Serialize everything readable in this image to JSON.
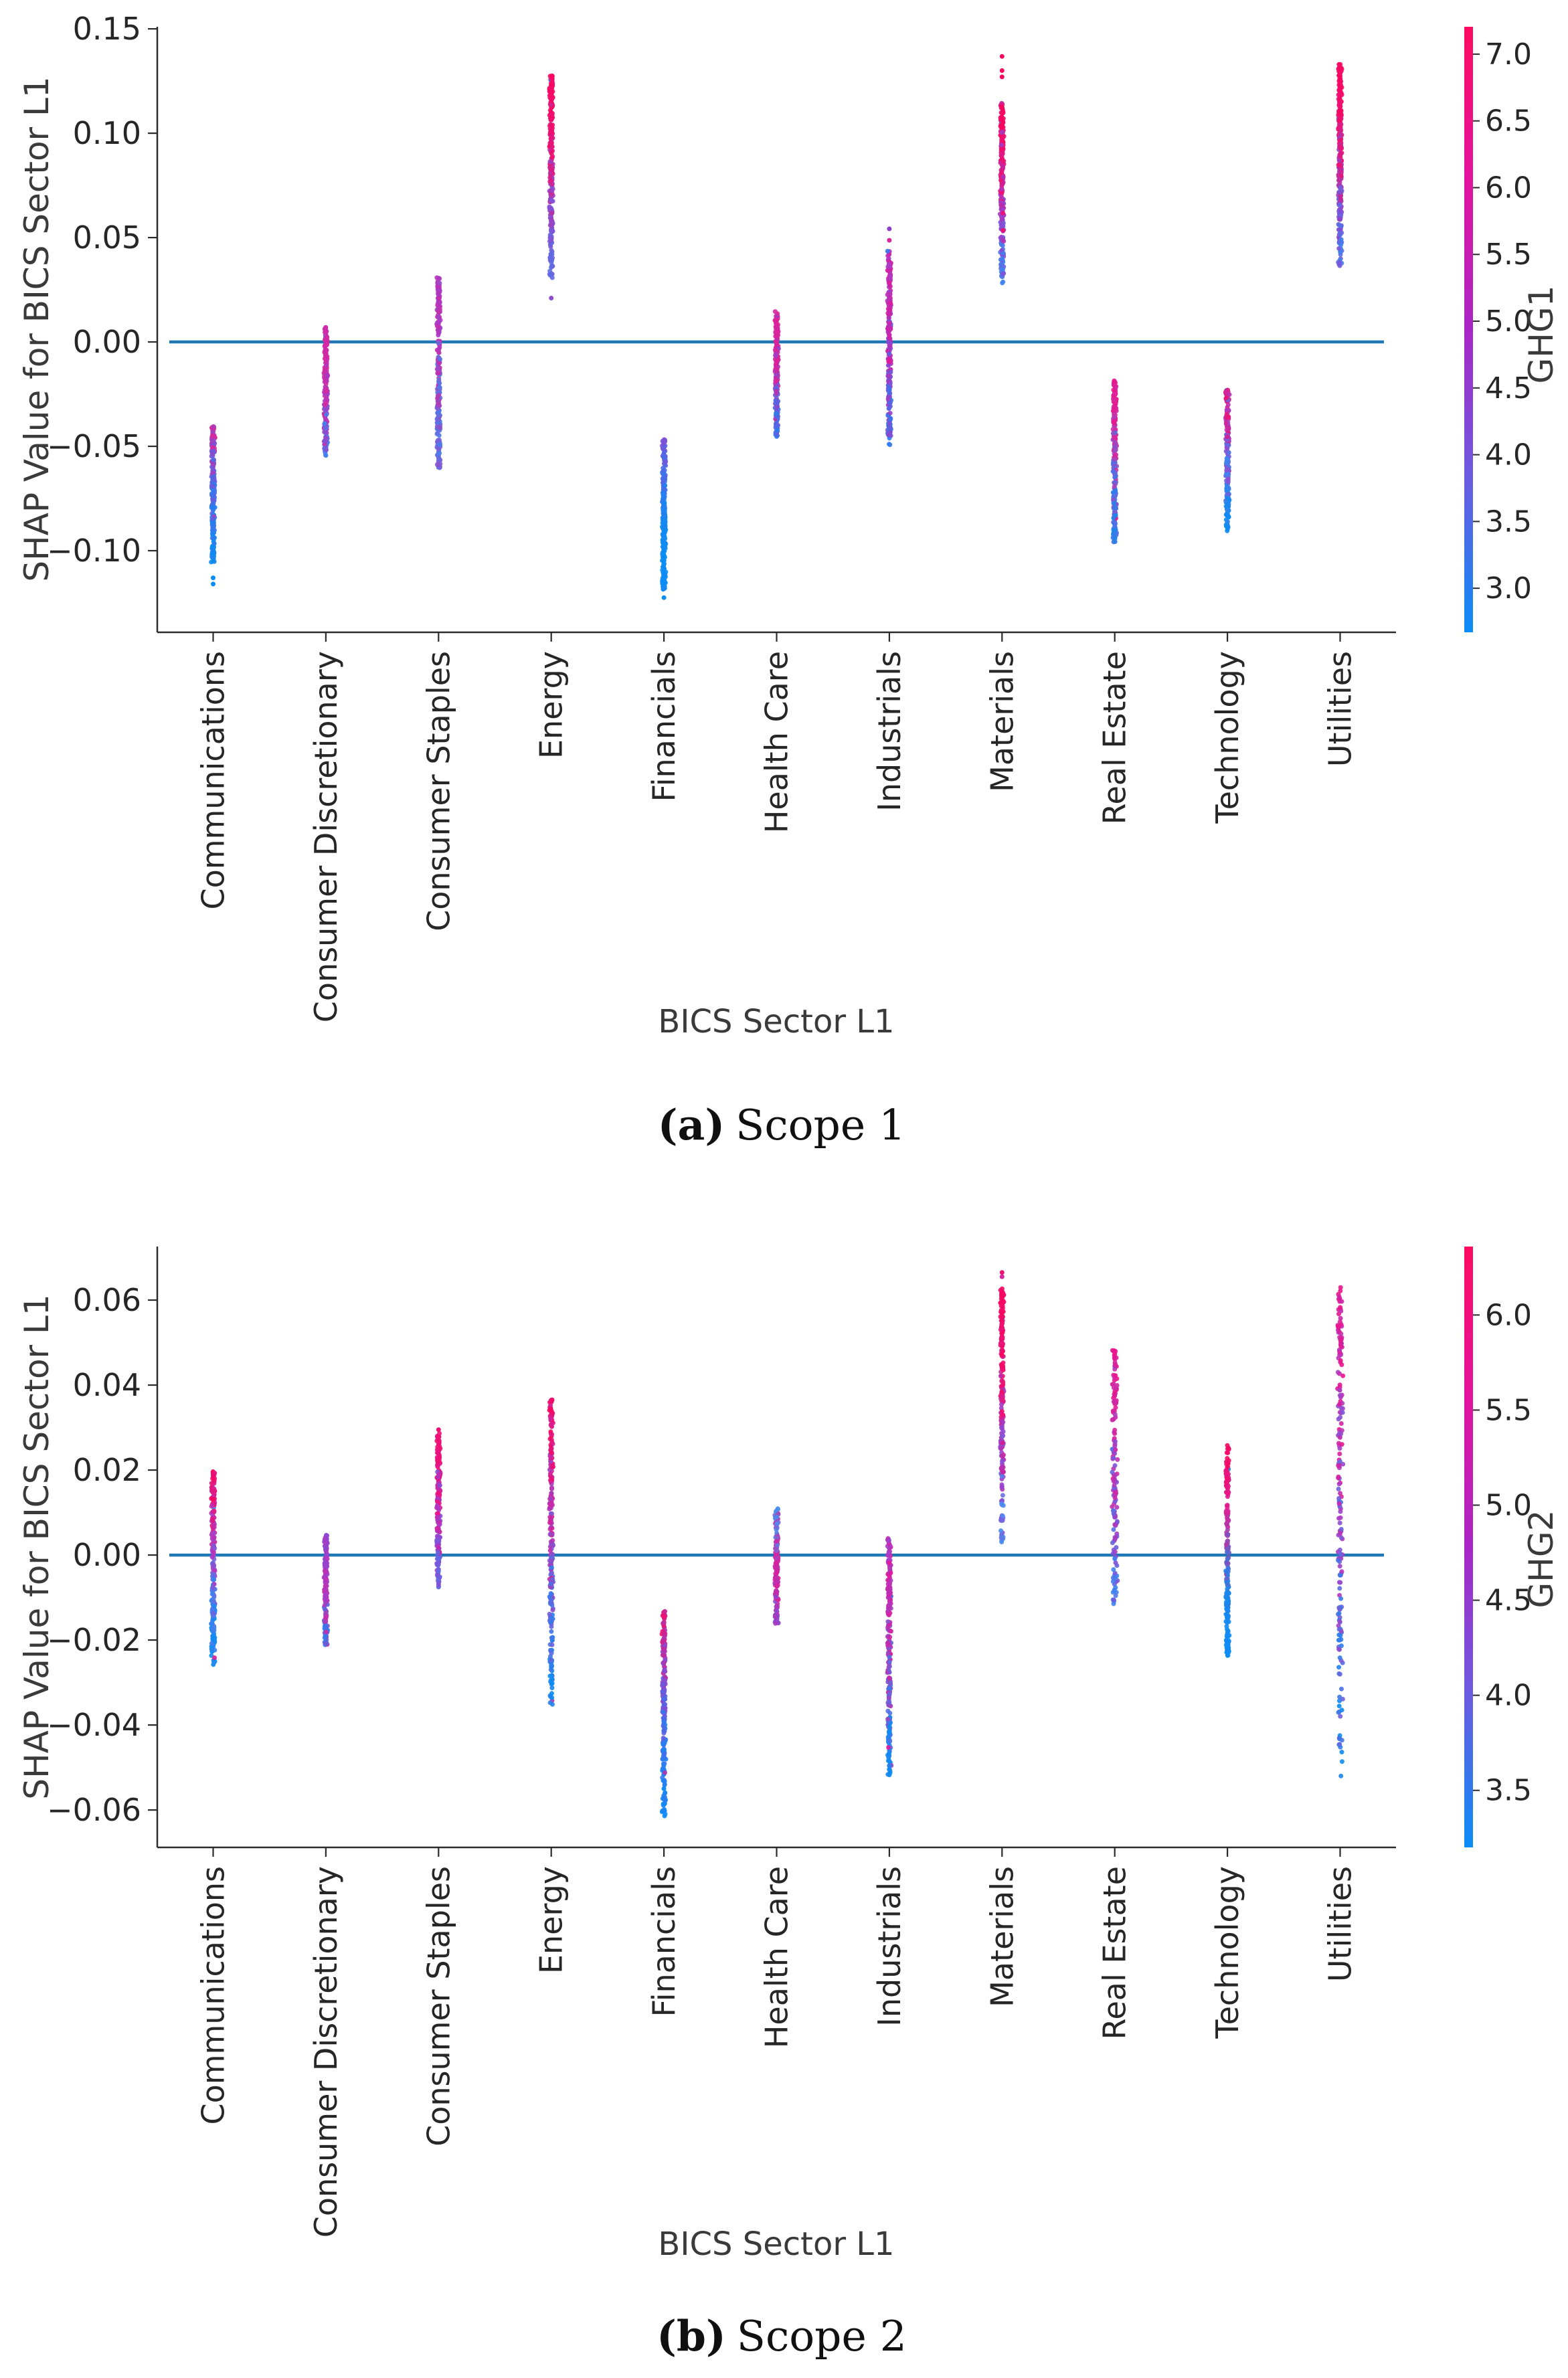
{
  "figure": {
    "subfigures": [
      {
        "caption_tag": "(a)",
        "caption_text": "Scope 1"
      },
      {
        "caption_tag": "(b)",
        "caption_text": "Scope 2"
      }
    ]
  },
  "chart_data": [
    {
      "type": "scatter",
      "variant": "shap-strip-plot",
      "xlabel": "BICS Sector L1",
      "ylabel": "SHAP Value for BICS Sector L1",
      "caption": "(a) Scope 1",
      "ylim": [
        -0.1391,
        0.151
      ],
      "yticks": [
        0.15,
        0.1,
        0.05,
        0.0,
        -0.05,
        -0.1
      ],
      "zero_line": 0.0,
      "zero_line_color": "#1f77b4",
      "grid": false,
      "legend_position": "right-colorbar",
      "categories": [
        "Communications",
        "Consumer Discretionary",
        "Consumer Staples",
        "Energy",
        "Financials",
        "Health Care",
        "Industrials",
        "Materials",
        "Real Estate",
        "Technology",
        "Utilities"
      ],
      "colorbar": {
        "label": "GHG1",
        "vmin": 2.67,
        "vmax": 7.205,
        "ticks": [
          7.0,
          6.5,
          6.0,
          5.5,
          5.0,
          4.5,
          4.0,
          3.5,
          3.0
        ],
        "colors": [
          "#0b8df6",
          "#6a5ce2",
          "#a926c6",
          "#e3129e",
          "#fc0c5f"
        ]
      },
      "strips": [
        {
          "category": "Communications",
          "min": -0.1055,
          "max": -0.0405,
          "n": 240,
          "bias": 1.0,
          "noise": 0.5,
          "spread": 3,
          "colors": [
            "#0c8cf2",
            "#2f7bee",
            "#7b51d8",
            "#d8289e"
          ],
          "outliers": [
            {
              "v": -0.113,
              "c": "#0c8cf2"
            },
            {
              "v": -0.116,
              "c": "#0c8cf2"
            }
          ]
        },
        {
          "category": "Consumer Discretionary",
          "min": -0.0545,
          "max": 0.0075,
          "n": 230,
          "bias": 1.0,
          "noise": 0.6,
          "spread": 3,
          "colors": [
            "#3f83ee",
            "#a23cc8",
            "#d8289e",
            "#cc2ba8"
          ],
          "outliers": []
        },
        {
          "category": "Consumer Staples",
          "min": -0.0605,
          "max": 0.031,
          "n": 250,
          "bias": 1.0,
          "noise": 0.65,
          "spread": 3,
          "colors": [
            "#7a5fd8",
            "#467fee",
            "#cb2baa",
            "#a93bc6"
          ],
          "outliers": []
        },
        {
          "category": "Energy",
          "min": 0.03,
          "max": 0.1275,
          "n": 290,
          "bias": 0.75,
          "noise": 0.35,
          "spread": 3,
          "colors": [
            "#5f6ae2",
            "#8b4cd4",
            "#ee1173",
            "#f7075f"
          ],
          "outliers": [
            {
              "v": 0.021,
              "c": "#8b4cd4"
            }
          ]
        },
        {
          "category": "Financials",
          "min": -0.1185,
          "max": -0.0465,
          "n": 270,
          "bias": 1.15,
          "noise": 0.3,
          "spread": 3,
          "colors": [
            "#0b8df6",
            "#0e8bf2",
            "#2d7cf0",
            "#7b51d8"
          ],
          "outliers": [
            {
              "v": -0.1225,
              "c": "#0b8df6"
            }
          ]
        },
        {
          "category": "Health Care",
          "min": -0.0455,
          "max": 0.0148,
          "n": 220,
          "bias": 1.0,
          "noise": 0.55,
          "spread": 3,
          "colors": [
            "#2f7bee",
            "#7b51d8",
            "#dd1f96",
            "#d8289e"
          ],
          "outliers": []
        },
        {
          "category": "Industrials",
          "min": -0.0495,
          "max": 0.044,
          "n": 270,
          "bias": 1.0,
          "noise": 0.5,
          "spread": 3,
          "colors": [
            "#2d7cf0",
            "#8a48d2",
            "#e0189a",
            "#a73ec8"
          ],
          "outliers": [
            {
              "v": 0.0542,
              "c": "#8b3fc9"
            },
            {
              "v": 0.0487,
              "c": "#d8289e"
            }
          ]
        },
        {
          "category": "Materials",
          "min": 0.028,
          "max": 0.1145,
          "n": 270,
          "bias": 0.8,
          "noise": 0.4,
          "spread": 3,
          "colors": [
            "#3f83ee",
            "#9b3fd0",
            "#ee1173",
            "#f7075f"
          ],
          "outliers": [
            {
              "v": 0.127,
              "c": "#f7075f"
            },
            {
              "v": 0.13,
              "c": "#f7075f"
            },
            {
              "v": 0.1368,
              "c": "#f7075f"
            }
          ]
        },
        {
          "category": "Real Estate",
          "min": -0.0965,
          "max": -0.0185,
          "n": 250,
          "bias": 0.9,
          "noise": 0.5,
          "spread": 3,
          "colors": [
            "#1e85ea",
            "#5f6ae2",
            "#d8289e",
            "#e8158c"
          ],
          "outliers": []
        },
        {
          "category": "Technology",
          "min": -0.0915,
          "max": -0.023,
          "n": 230,
          "bias": 0.85,
          "noise": 0.45,
          "spread": 3,
          "colors": [
            "#0c8cf2",
            "#3f83ee",
            "#a93bc6",
            "#ee1173"
          ],
          "outliers": []
        },
        {
          "category": "Utilities",
          "min": 0.033,
          "max": 0.133,
          "n": 290,
          "bias": 0.8,
          "noise": 0.45,
          "spread": 3,
          "colors": [
            "#3f83ee",
            "#8a48d2",
            "#ee1173",
            "#f7075f"
          ],
          "outliers": []
        }
      ]
    },
    {
      "type": "scatter",
      "variant": "shap-strip-plot",
      "xlabel": "BICS Sector L1",
      "ylabel": "SHAP Value for BICS Sector L1",
      "caption": "(b) Scope 2",
      "ylim": [
        -0.0688,
        0.0726
      ],
      "yticks": [
        0.06,
        0.04,
        0.02,
        0.0,
        -0.02,
        -0.04,
        -0.06
      ],
      "zero_line": 0.0,
      "zero_line_color": "#1f77b4",
      "grid": false,
      "legend_position": "right-colorbar",
      "categories": [
        "Communications",
        "Consumer Discretionary",
        "Consumer Staples",
        "Energy",
        "Financials",
        "Health Care",
        "Industrials",
        "Materials",
        "Real Estate",
        "Technology",
        "Utilities"
      ],
      "colorbar": {
        "label": "GHG2",
        "vmin": 3.2,
        "vmax": 6.36,
        "ticks": [
          6.0,
          5.5,
          5.0,
          4.5,
          4.0,
          3.5
        ],
        "colors": [
          "#0b8df6",
          "#6a5ce2",
          "#a926c6",
          "#e3129e",
          "#fc0c5f"
        ]
      },
      "strips": [
        {
          "category": "Communications",
          "min": -0.0262,
          "max": 0.0197,
          "n": 230,
          "bias": 0.9,
          "noise": 0.4,
          "spread": 3,
          "colors": [
            "#0c8cf2",
            "#467fee",
            "#b735c0",
            "#f7075f"
          ],
          "outliers": []
        },
        {
          "category": "Consumer Discretionary",
          "min": -0.0212,
          "max": 0.0048,
          "n": 190,
          "bias": 1.0,
          "noise": 0.6,
          "spread": 3,
          "colors": [
            "#2f7bee",
            "#cb2baa",
            "#a93bc6",
            "#8a48d2"
          ],
          "outliers": []
        },
        {
          "category": "Consumer Staples",
          "min": -0.009,
          "max": 0.0287,
          "n": 210,
          "bias": 0.85,
          "noise": 0.5,
          "spread": 3,
          "colors": [
            "#5f6ae2",
            "#9b3fd0",
            "#e8158c",
            "#ee1173"
          ],
          "outliers": [
            {
              "v": 0.0295,
              "c": "#ee1173"
            }
          ]
        },
        {
          "category": "Energy",
          "min": -0.0355,
          "max": 0.0368,
          "n": 250,
          "bias": 0.9,
          "noise": 0.45,
          "spread": 3,
          "colors": [
            "#0c8cf2",
            "#5f6ae2",
            "#c32bb0",
            "#f7075f"
          ],
          "outliers": []
        },
        {
          "category": "Financials",
          "min": -0.0615,
          "max": -0.013,
          "n": 230,
          "bias": 0.75,
          "noise": 0.35,
          "spread": 3,
          "colors": [
            "#0b8df6",
            "#2d7cf0",
            "#8a48d2",
            "#ee1173"
          ],
          "outliers": []
        },
        {
          "category": "Health Care",
          "min": -0.0168,
          "max": 0.011,
          "n": 180,
          "bias": 1.0,
          "noise": 0.5,
          "spread": 3,
          "colors": [
            "#8a48d2",
            "#dd1f96",
            "#cb2baa",
            "#4a8df0"
          ],
          "outliers": []
        },
        {
          "category": "Industrials",
          "min": -0.0528,
          "max": 0.004,
          "n": 250,
          "bias": 0.95,
          "noise": 0.5,
          "spread": 3,
          "colors": [
            "#0c8cf2",
            "#5f6ae2",
            "#e0189a",
            "#a73ec8"
          ],
          "outliers": []
        },
        {
          "category": "Materials",
          "min": 0.003,
          "max": 0.063,
          "n": 230,
          "bias": 0.8,
          "noise": 0.45,
          "spread": 3,
          "colors": [
            "#4a8df0",
            "#9b3fd0",
            "#ee1173",
            "#f7075f"
          ],
          "outliers": [
            {
              "v": 0.0655,
              "c": "#d8289e"
            },
            {
              "v": 0.0665,
              "c": "#ee1173"
            }
          ]
        },
        {
          "category": "Real Estate",
          "min": -0.012,
          "max": 0.0488,
          "n": 150,
          "bias": 0.9,
          "noise": 0.6,
          "spread": 4.5,
          "colors": [
            "#3f83ee",
            "#8a48d2",
            "#cb2baa",
            "#e8158c"
          ],
          "outliers": []
        },
        {
          "category": "Technology",
          "min": -0.0238,
          "max": 0.0258,
          "n": 210,
          "bias": 1.0,
          "noise": 0.15,
          "spread": 3,
          "colors": [
            "#0b8df6",
            "#1e85ea",
            "#dd1f96",
            "#f7075f"
          ],
          "outliers": []
        },
        {
          "category": "Utilities",
          "min": -0.053,
          "max": 0.063,
          "n": 190,
          "bias": 0.85,
          "noise": 0.6,
          "spread": 4.5,
          "colors": [
            "#0c8cf2",
            "#5f6ae2",
            "#b735c0",
            "#e8158c"
          ],
          "outliers": []
        }
      ]
    }
  ]
}
